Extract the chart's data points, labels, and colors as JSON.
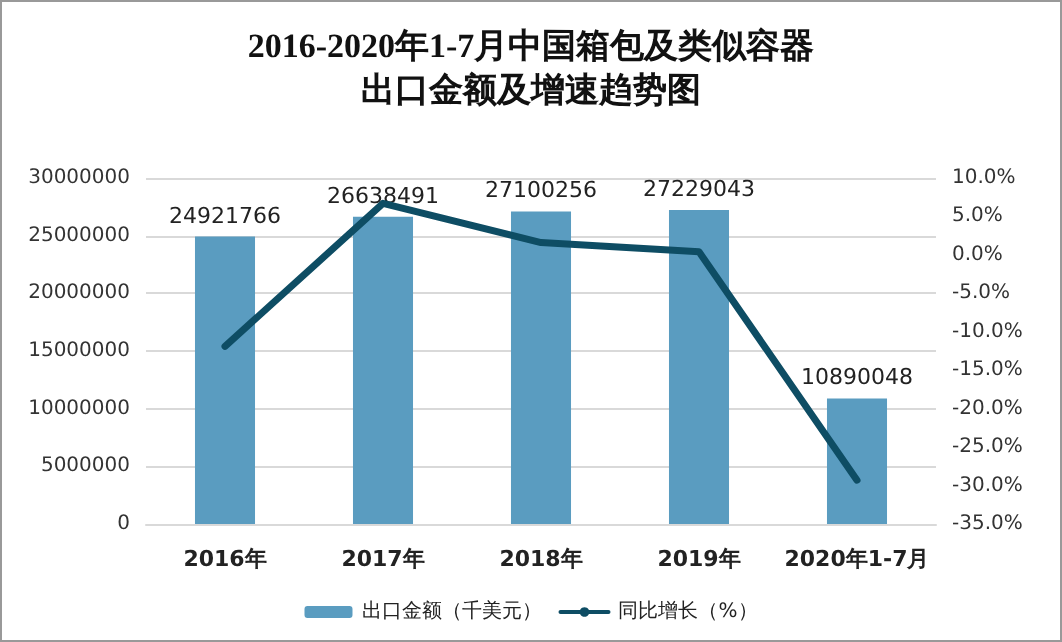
{
  "chart_data": {
    "type": "bar",
    "title": "2016-2020年1-7月中国箱包及类似容器出口金额及增速趋势图",
    "categories": [
      "2016年",
      "2017年",
      "2018年",
      "2019年",
      "2020年1-7月"
    ],
    "series": [
      {
        "name": "出口金额（千美元）",
        "color": "#5a9cc0",
        "values": [
          24921766,
          26638491,
          27100256,
          27229043,
          10890048
        ],
        "data_labels": true
      },
      {
        "name": "同比增长（%）",
        "type": "line",
        "axis": "y2",
        "color": "#0e4d64",
        "values": [
          -11.9,
          6.7,
          1.6,
          0.4,
          -29.3
        ],
        "marker": "none"
      }
    ],
    "ylim": [
      0,
      30000000
    ],
    "yticks": [
      0,
      5000000,
      10000000,
      15000000,
      20000000,
      25000000,
      30000000
    ],
    "y2lim": [
      -35,
      10
    ],
    "y2ticks": [
      {
        "value": -35,
        "label": "-35.0%"
      },
      {
        "value": -30,
        "label": "-30.0%"
      },
      {
        "value": -25,
        "label": "-25.0%"
      },
      {
        "value": -20,
        "label": "-20.0%"
      },
      {
        "value": -15,
        "label": "-15.0%"
      },
      {
        "value": -10,
        "label": "-10.0%"
      },
      {
        "value": -5,
        "label": "-5.0%"
      },
      {
        "value": 0,
        "label": "0.0%"
      },
      {
        "value": 5,
        "label": "5.0%"
      },
      {
        "value": 10,
        "label": "10.0%"
      }
    ],
    "grid": "y",
    "legend": "bottom"
  }
}
